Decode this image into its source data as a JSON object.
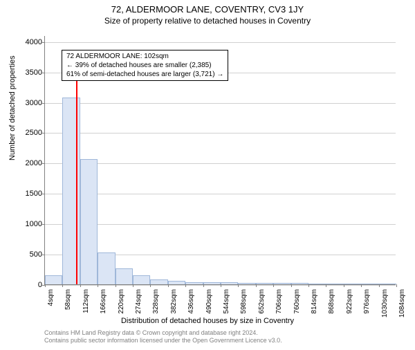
{
  "title": "72, ALDERMOOR LANE, COVENTRY, CV3 1JY",
  "subtitle": "Size of property relative to detached houses in Coventry",
  "x_axis_label": "Distribution of detached houses by size in Coventry",
  "y_axis_label": "Number of detached properties",
  "chart": {
    "type": "histogram",
    "x_tick_labels": [
      "4sqm",
      "58sqm",
      "112sqm",
      "166sqm",
      "220sqm",
      "274sqm",
      "328sqm",
      "382sqm",
      "436sqm",
      "490sqm",
      "544sqm",
      "598sqm",
      "652sqm",
      "706sqm",
      "760sqm",
      "814sqm",
      "868sqm",
      "922sqm",
      "976sqm",
      "1030sqm",
      "1084sqm"
    ],
    "y_ticks": [
      0,
      500,
      1000,
      1500,
      2000,
      2500,
      3000,
      3500,
      4000
    ],
    "y_max": 4100,
    "bar_values": [
      150,
      3080,
      2060,
      520,
      260,
      150,
      80,
      60,
      40,
      40,
      30,
      25,
      25,
      20,
      20,
      15,
      15,
      10,
      10,
      10
    ],
    "bar_fill": "#dbe5f5",
    "bar_stroke": "#9fb7d9",
    "grid_color": "#d0d0d0",
    "axis_color": "#808080",
    "marker": {
      "position_sqm": 102,
      "min_sqm": 4,
      "max_sqm": 1084,
      "color": "#ff0000",
      "height_value": 3800
    },
    "annotation": {
      "line1": "72 ALDERMOOR LANE: 102sqm",
      "line2": "← 39% of detached houses are smaller (2,385)",
      "line3": "61% of semi-detached houses are larger (3,721) →"
    }
  },
  "footer": {
    "line1": "Contains HM Land Registry data © Crown copyright and database right 2024.",
    "line2": "Contains public sector information licensed under the Open Government Licence v3.0."
  }
}
